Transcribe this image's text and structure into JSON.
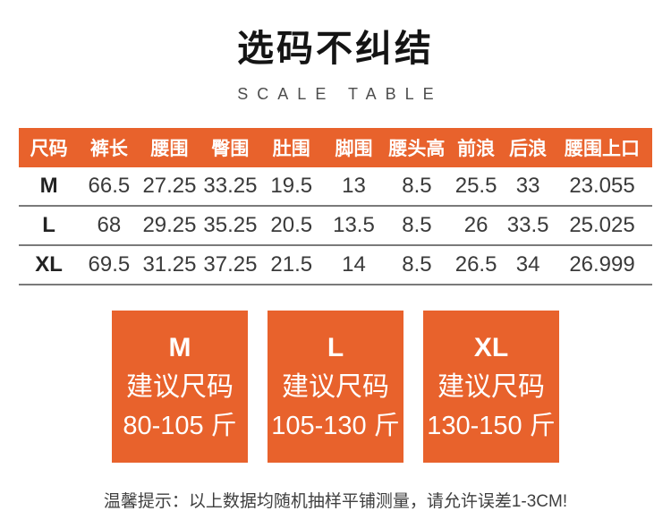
{
  "page": {
    "title": "选码不纠结",
    "subtitle": "SCALE TABLE",
    "tip": "温馨提示：以上数据均随机抽样平铺测量，请允许误差1-3CM!"
  },
  "colors": {
    "accent_orange": "#E8622C",
    "divider_gray": "#7A7A7A",
    "title_black": "#141414",
    "body_text": "#3A3A3A"
  },
  "chart_data": {
    "type": "table",
    "title": "选码不纠结",
    "subtitle": "SCALE TABLE",
    "columns": [
      "尺码",
      "裤长",
      "腰围",
      "臀围",
      "肚围",
      "脚围",
      "腰头高",
      "前浪",
      "后浪",
      "腰围上口"
    ],
    "rows": [
      [
        "M",
        "66.5",
        "27.25",
        "33.25",
        "19.5",
        "13",
        "8.5",
        "25.5",
        "33",
        "23.055"
      ],
      [
        "L",
        "68",
        "29.25",
        "35.25",
        "20.5",
        "13.5",
        "8.5",
        "26",
        "33.5",
        "25.025"
      ],
      [
        "XL",
        "69.5",
        "31.25",
        "37.25",
        "21.5",
        "14",
        "8.5",
        "26.5",
        "34",
        "26.999"
      ]
    ],
    "recommendations": [
      {
        "size": "M",
        "label": "建议尺码",
        "range": "80-105 斤"
      },
      {
        "size": "L",
        "label": "建议尺码",
        "range": "105-130 斤"
      },
      {
        "size": "XL",
        "label": "建议尺码",
        "range": "130-150 斤"
      }
    ],
    "note": "温馨提示：以上数据均随机抽样平铺测量，请允许误差1-3CM!"
  }
}
